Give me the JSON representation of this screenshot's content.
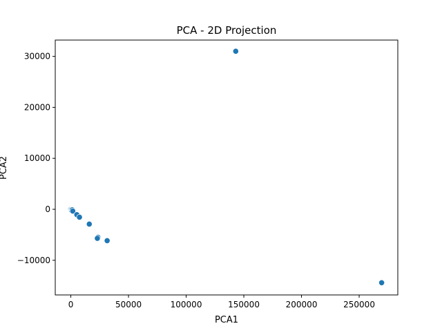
{
  "chart_data": {
    "type": "scatter",
    "title": "PCA - 2D Projection",
    "xlabel": "PCA1",
    "ylabel": "PCA2",
    "xlim": [
      -13500,
      283500
    ],
    "ylim": [
      -16800,
      33200
    ],
    "xticks": [
      0,
      50000,
      100000,
      150000,
      200000,
      250000
    ],
    "xtick_labels": [
      "0",
      "50000",
      "100000",
      "150000",
      "200000",
      "250000"
    ],
    "yticks": [
      -10000,
      0,
      10000,
      20000,
      30000
    ],
    "ytick_labels": [
      "−10000",
      "0",
      "10000",
      "20000",
      "30000"
    ],
    "grid": false,
    "marker_color": "#1f77b4",
    "marker_edge_color": "#ffffff",
    "points": [
      {
        "x": -200,
        "y": -30
      },
      {
        "x": 300,
        "y": -120
      },
      {
        "x": 700,
        "y": -250
      },
      {
        "x": 1200,
        "y": -100
      },
      {
        "x": 1700,
        "y": -350
      },
      {
        "x": 5200,
        "y": -1050
      },
      {
        "x": 7500,
        "y": -1550
      },
      {
        "x": 16000,
        "y": -2900
      },
      {
        "x": 23500,
        "y": -5500
      },
      {
        "x": 23000,
        "y": -5700
      },
      {
        "x": 31500,
        "y": -6150
      },
      {
        "x": 143000,
        "y": 31000
      },
      {
        "x": 269500,
        "y": -14400
      }
    ]
  }
}
